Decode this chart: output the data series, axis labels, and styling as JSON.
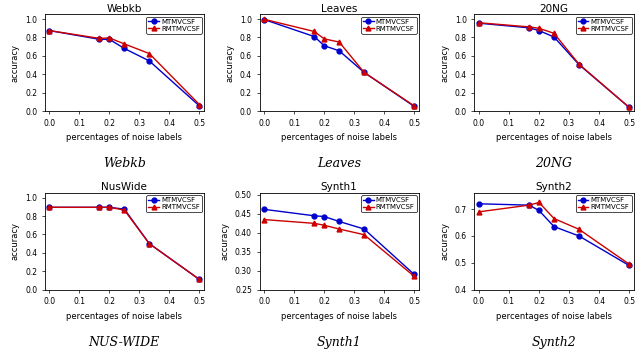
{
  "x": [
    0,
    0.167,
    0.2,
    0.25,
    0.333,
    0.5
  ],
  "plots": [
    {
      "title": "Webkb",
      "xlabel": "percentages of noise labels",
      "ylabel": "accuracy",
      "label_below": "Webkb",
      "mtmvcsf": [
        0.875,
        0.78,
        0.78,
        0.68,
        0.545,
        0.055
      ],
      "rmtmvcsf": [
        0.875,
        0.79,
        0.795,
        0.73,
        0.625,
        0.07
      ],
      "ylim": [
        0,
        1.05
      ],
      "yticks": [
        0,
        0.2,
        0.4,
        0.6,
        0.8,
        1.0
      ]
    },
    {
      "title": "Leaves",
      "xlabel": "percentages of noise labels",
      "ylabel": "accuracy",
      "label_below": "Leaves",
      "mtmvcsf": [
        0.995,
        0.81,
        0.71,
        0.655,
        0.42,
        0.05
      ],
      "rmtmvcsf": [
        0.998,
        0.865,
        0.785,
        0.75,
        0.42,
        0.055
      ],
      "ylim": [
        0,
        1.05
      ],
      "yticks": [
        0,
        0.2,
        0.4,
        0.6,
        0.8,
        1.0
      ]
    },
    {
      "title": "20NG",
      "xlabel": "percentages of noise labels",
      "ylabel": "accuracy",
      "label_below": "20NG",
      "mtmvcsf": [
        0.955,
        0.905,
        0.875,
        0.805,
        0.505,
        0.04
      ],
      "rmtmvcsf": [
        0.96,
        0.915,
        0.9,
        0.845,
        0.51,
        0.04
      ],
      "ylim": [
        0,
        1.05
      ],
      "yticks": [
        0,
        0.2,
        0.4,
        0.6,
        0.8,
        1.0
      ]
    },
    {
      "title": "NusWide",
      "xlabel": "percentages of noise labels",
      "ylabel": "accuracy",
      "label_below": "NUS-WIDE",
      "mtmvcsf": [
        0.895,
        0.895,
        0.895,
        0.875,
        0.5,
        0.11
      ],
      "rmtmvcsf": [
        0.895,
        0.895,
        0.895,
        0.865,
        0.5,
        0.11
      ],
      "ylim": [
        0,
        1.05
      ],
      "yticks": [
        0,
        0.2,
        0.4,
        0.6,
        0.8,
        1.0
      ]
    },
    {
      "title": "Synth1",
      "xlabel": "percentages of noise labels",
      "ylabel": "accuracy",
      "label_below": "Synth1",
      "mtmvcsf": [
        0.462,
        0.445,
        0.443,
        0.43,
        0.41,
        0.29
      ],
      "rmtmvcsf": [
        0.435,
        0.425,
        0.42,
        0.41,
        0.395,
        0.285
      ],
      "ylim": [
        0.25,
        0.505
      ],
      "yticks": [
        0.25,
        0.3,
        0.35,
        0.4,
        0.45,
        0.5
      ]
    },
    {
      "title": "Synth2",
      "xlabel": "percentages of noise labels",
      "ylabel": "accuracy",
      "label_below": "Synth2",
      "mtmvcsf": [
        0.72,
        0.715,
        0.695,
        0.635,
        0.6,
        0.49
      ],
      "rmtmvcsf": [
        0.69,
        0.715,
        0.725,
        0.665,
        0.625,
        0.495
      ],
      "ylim": [
        0.4,
        0.76
      ],
      "yticks": [
        0.4,
        0.5,
        0.6,
        0.7
      ]
    }
  ],
  "blue_color": "#0000cc",
  "red_color": "#cc0000",
  "marker_blue": "o",
  "marker_red": "^",
  "legend_labels": [
    "MTMVCSF",
    "RMTMVCSF"
  ],
  "xticks": [
    0,
    0.1,
    0.2,
    0.3,
    0.4,
    0.5
  ]
}
